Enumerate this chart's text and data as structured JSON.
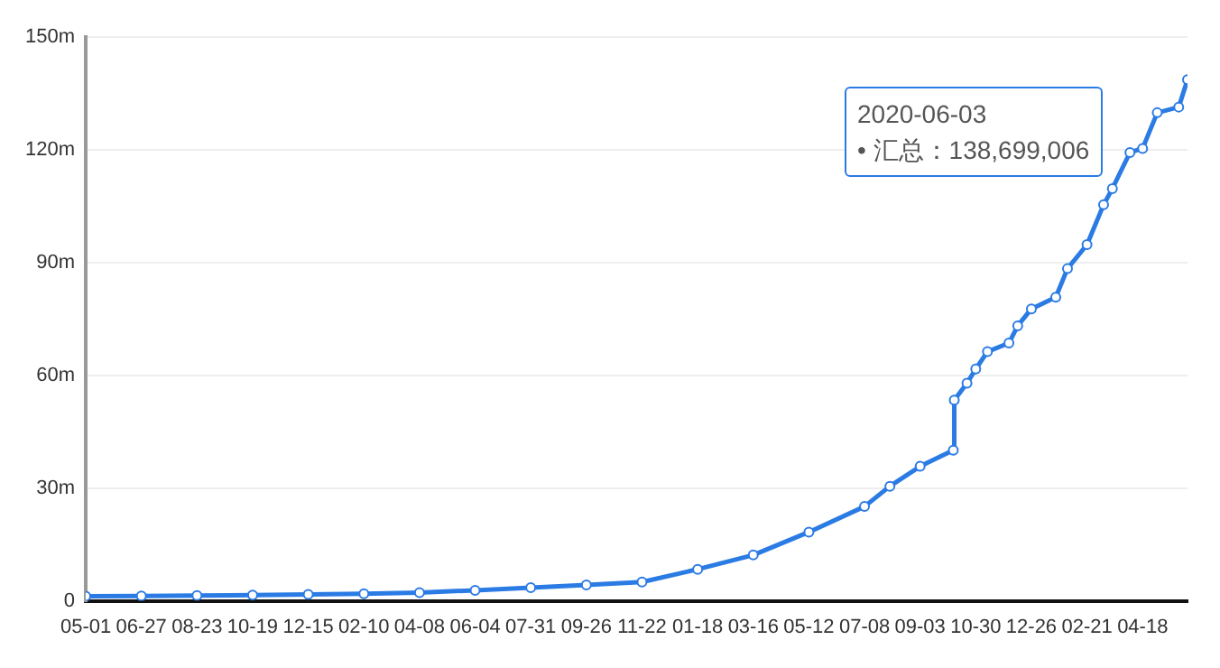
{
  "chart_data": {
    "type": "line",
    "x": [
      "2017-05-01",
      "2017-06-27",
      "2017-08-23",
      "2017-10-19",
      "2017-12-15",
      "2018-02-10",
      "2018-04-08",
      "2018-06-04",
      "2018-07-31",
      "2018-09-26",
      "2018-11-22",
      "2019-01-18",
      "2019-03-16",
      "2019-05-12",
      "2019-07-08",
      "2019-08-03",
      "2019-09-03",
      "2019-10-07",
      "2019-10-08",
      "2019-10-21",
      "2019-10-30",
      "2019-11-11",
      "2019-12-03",
      "2019-12-12",
      "2019-12-26",
      "2020-01-20",
      "2020-02-01",
      "2020-02-21",
      "2020-03-09",
      "2020-03-18",
      "2020-04-05",
      "2020-04-18",
      "2020-05-03",
      "2020-05-25",
      "2020-06-03"
    ],
    "series": [
      {
        "color": "#2b7be4",
        "values": [
          1.2,
          1.3,
          1.4,
          1.5,
          1.7,
          1.9,
          2.2,
          2.8,
          3.5,
          4.2,
          5,
          8.4,
          12.2,
          18.3,
          25.1,
          30.5,
          35.8,
          40.1,
          53.4,
          57.9,
          61.7,
          66.3,
          68.6,
          73.2,
          77.7,
          80.8,
          88.4,
          94.8,
          105.4,
          109.7,
          119.3,
          120.4,
          129.9,
          131.4,
          138.7
        ]
      }
    ],
    "xlim": [
      "2017-05-01",
      "2020-06-03"
    ],
    "xticks": [
      {
        "value": "2017-05-01",
        "label": "05-01"
      },
      {
        "value": "2017-06-27",
        "label": "06-27"
      },
      {
        "value": "2017-08-23",
        "label": "08-23"
      },
      {
        "value": "2017-10-19",
        "label": "10-19"
      },
      {
        "value": "2017-12-15",
        "label": "12-15"
      },
      {
        "value": "2018-02-10",
        "label": "02-10"
      },
      {
        "value": "2018-04-08",
        "label": "04-08"
      },
      {
        "value": "2018-06-04",
        "label": "06-04"
      },
      {
        "value": "2018-07-31",
        "label": "07-31"
      },
      {
        "value": "2018-09-26",
        "label": "09-26"
      },
      {
        "value": "2018-11-22",
        "label": "11-22"
      },
      {
        "value": "2019-01-18",
        "label": "01-18"
      },
      {
        "value": "2019-03-16",
        "label": "03-16"
      },
      {
        "value": "2019-05-12",
        "label": "05-12"
      },
      {
        "value": "2019-07-08",
        "label": "07-08"
      },
      {
        "value": "2019-09-03",
        "label": "09-03"
      },
      {
        "value": "2019-10-30",
        "label": "10-30"
      },
      {
        "value": "2019-12-26",
        "label": "12-26"
      },
      {
        "value": "2020-02-21",
        "label": "02-21"
      },
      {
        "value": "2020-04-18",
        "label": "04-18"
      }
    ],
    "ylim": [
      0,
      150
    ],
    "yticks": [
      0,
      {
        "value": 30,
        "label": "30m"
      },
      {
        "value": 60,
        "label": "60m"
      },
      {
        "value": 90,
        "label": "90m"
      },
      {
        "value": 120,
        "label": "120m"
      },
      {
        "value": 150,
        "label": "150m"
      }
    ],
    "grid": "y",
    "marker": "circle",
    "line_style": "solid",
    "legend": false,
    "annotations": [
      "2020-06-03\n• 汇总：138,699,006"
    ]
  }
}
